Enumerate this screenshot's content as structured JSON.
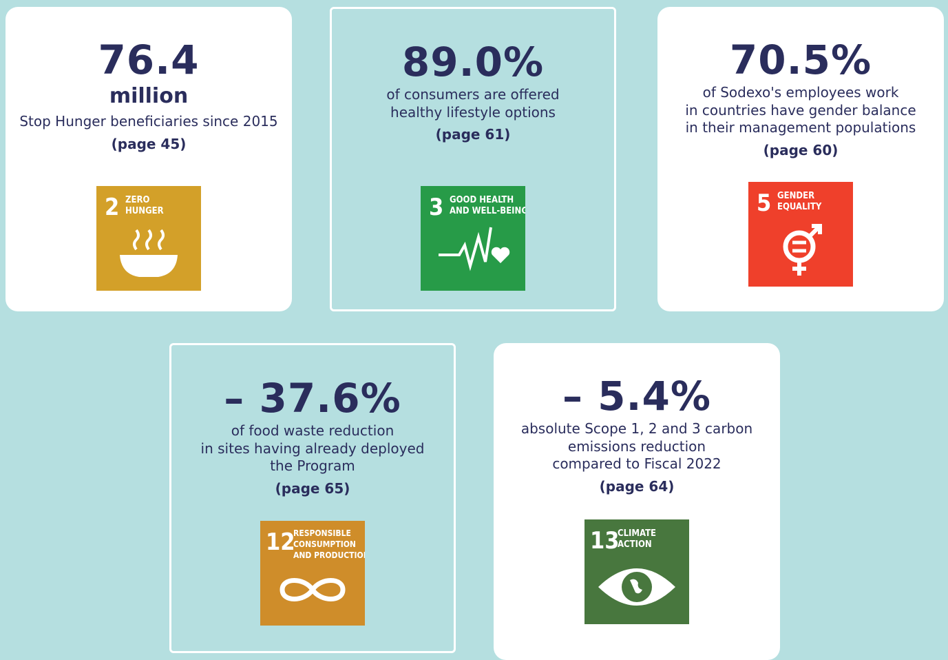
{
  "cards": [
    {
      "value": "76.4",
      "unit": "million",
      "description": [
        "Stop Hunger beneficiaries since 2015"
      ],
      "page": "(page 45)",
      "sdg": {
        "number": "2",
        "label": [
          "ZERO",
          "HUNGER"
        ]
      }
    },
    {
      "value": "89.0%",
      "description": [
        "of consumers are offered",
        "healthy lifestyle options"
      ],
      "page": "(page 61)",
      "sdg": {
        "number": "3",
        "label": [
          "GOOD HEALTH",
          "AND WELL-BEING"
        ]
      }
    },
    {
      "value": "70.5%",
      "description": [
        "of Sodexo's employees work",
        "in countries have gender balance",
        "in their management populations"
      ],
      "page": "(page 60)",
      "sdg": {
        "number": "5",
        "label": [
          "GENDER",
          "EQUALITY"
        ]
      }
    },
    {
      "value": "– 37.6%",
      "description": [
        "of food waste reduction",
        "in sites having already deployed",
        "the Program"
      ],
      "page": "(page 65)",
      "sdg": {
        "number": "12",
        "label": [
          "RESPONSIBLE",
          "CONSUMPTION",
          "AND PRODUCTION"
        ]
      }
    },
    {
      "value": "– 5.4%",
      "description": [
        "absolute Scope 1, 2 and 3 carbon",
        "emissions reduction",
        "compared to Fiscal 2022"
      ],
      "page": "(page 64)",
      "sdg": {
        "number": "13",
        "label": [
          "CLIMATE",
          "ACTION"
        ]
      }
    }
  ]
}
